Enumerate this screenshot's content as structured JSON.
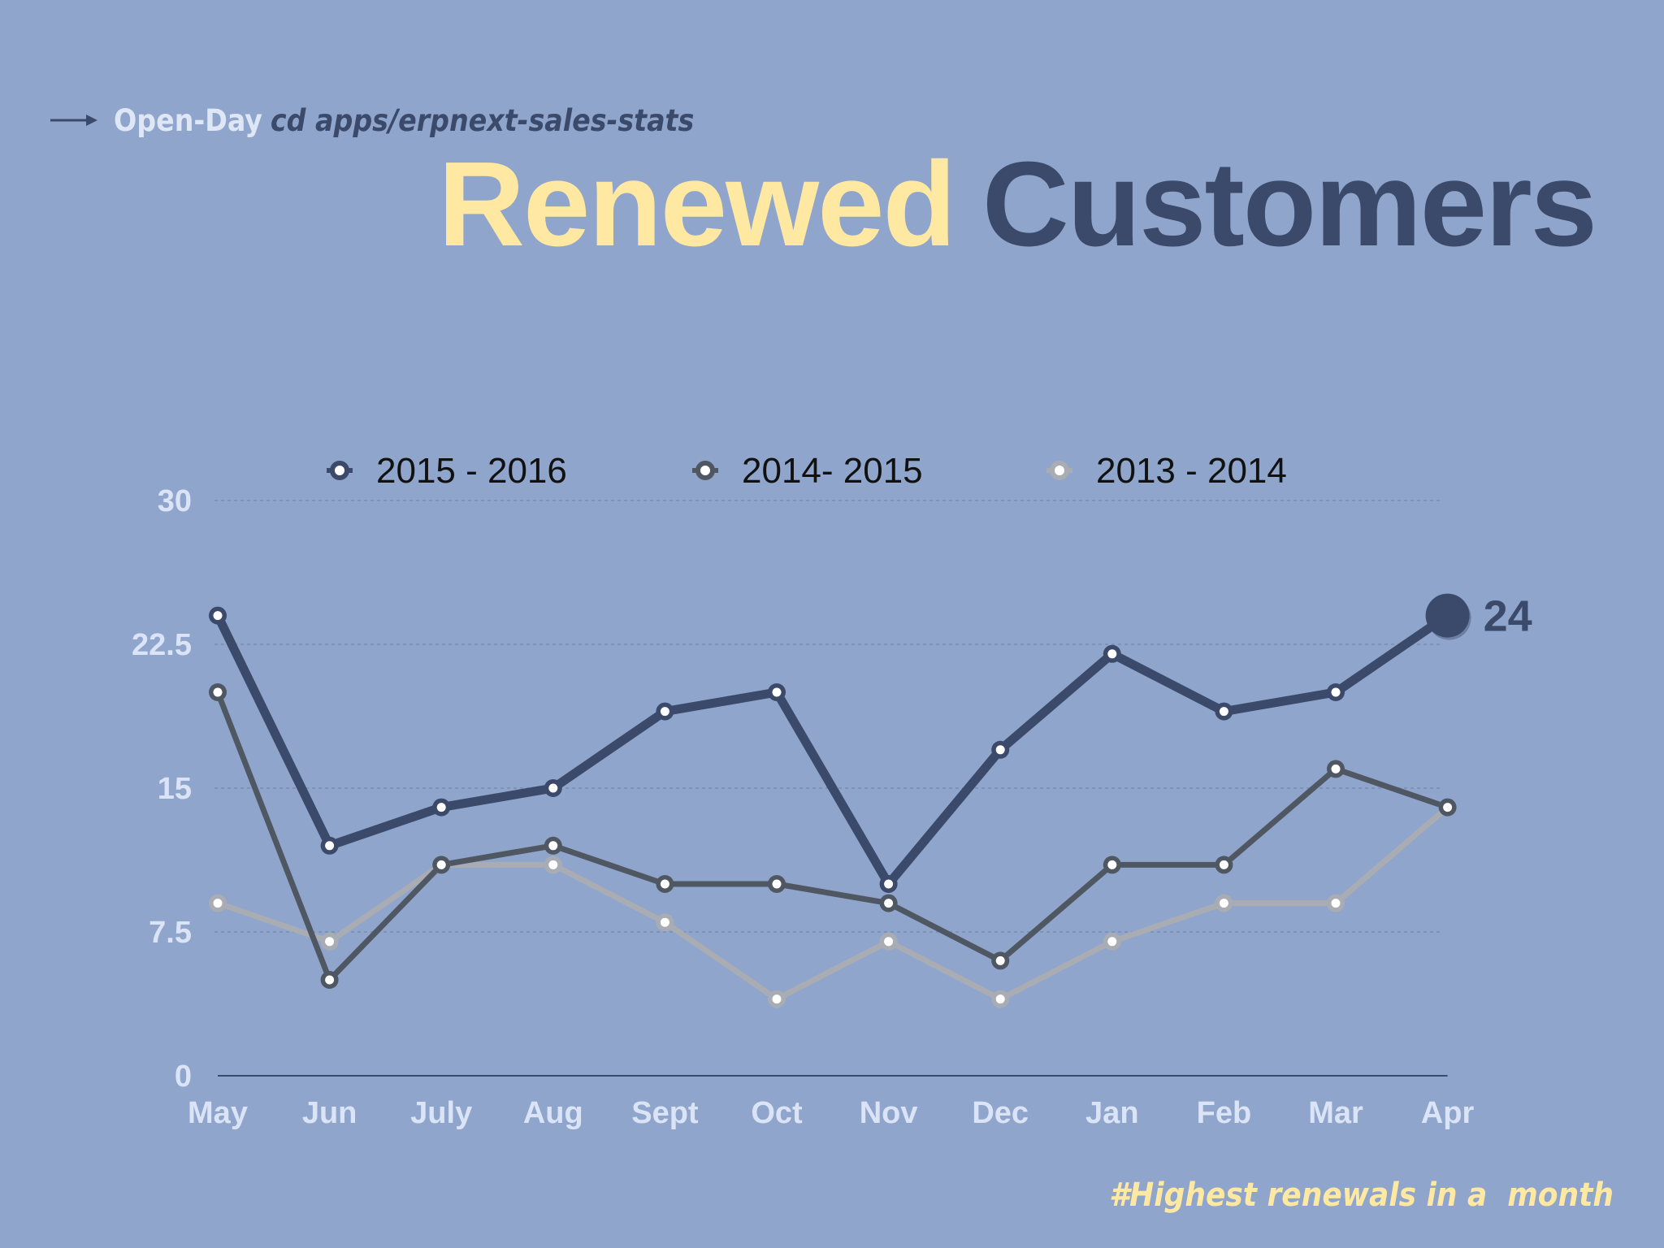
{
  "header": {
    "app_name": "Open-Day",
    "command": "cd apps/erpnext-sales-stats"
  },
  "title": {
    "highlight": "Renewed",
    "rest": "Customers"
  },
  "footnote": "#Highest renewals in a  month",
  "colors": {
    "background": "#8fa5cb",
    "title_highlight": "#ffe8a1",
    "title_dark": "#3b4a6b",
    "tick_text": "#dbe4f6"
  },
  "chart_data": {
    "type": "line",
    "categories": [
      "May",
      "Jun",
      "July",
      "Aug",
      "Sept",
      "Oct",
      "Nov",
      "Dec",
      "Jan",
      "Feb",
      "Mar",
      "Apr"
    ],
    "yticks": [
      "0",
      "7.5",
      "15",
      "22.5",
      "30"
    ],
    "ylim": [
      0,
      30
    ],
    "grid": true,
    "legend_position": "top",
    "series": [
      {
        "name": "2015 - 2016",
        "color": "#3b4a6b",
        "values": [
          24,
          12,
          14,
          15,
          19,
          20,
          10,
          17,
          22,
          19,
          20,
          24
        ]
      },
      {
        "name": "2014- 2015",
        "color": "#4f5763",
        "values": [
          20,
          5,
          11,
          12,
          10,
          10,
          9,
          6,
          11,
          11,
          16,
          14
        ]
      },
      {
        "name": "2013 - 2014",
        "color": "#a9adb3",
        "values": [
          9,
          7,
          11,
          11,
          8,
          4,
          7,
          4,
          7,
          9,
          9,
          14
        ]
      }
    ],
    "annotation": {
      "text": "24",
      "series": "2015 - 2016",
      "category": "Apr"
    }
  }
}
